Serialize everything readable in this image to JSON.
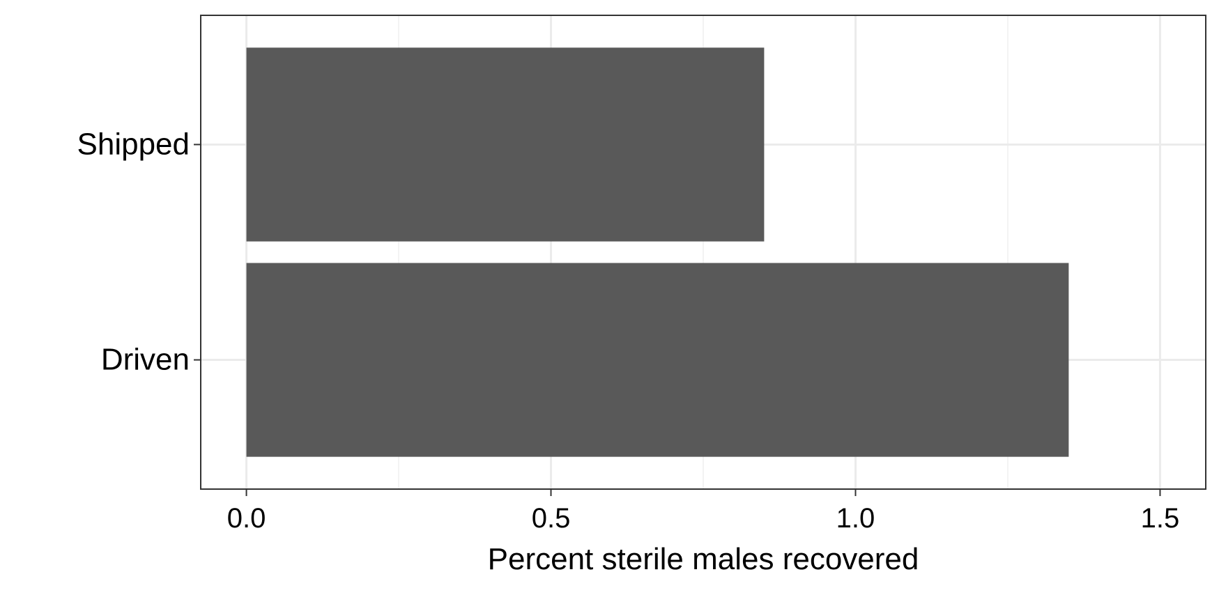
{
  "chart_data": {
    "type": "bar",
    "orientation": "horizontal",
    "title": "",
    "xlabel": "Percent sterile males recovered",
    "ylabel": "",
    "categories": [
      "Driven",
      "Shipped"
    ],
    "values": [
      1.35,
      0.85
    ],
    "xlim": [
      -0.075,
      1.575
    ],
    "xticks": [
      0.0,
      0.5,
      1.0,
      1.5
    ],
    "xtick_labels": [
      "0.0",
      "0.5",
      "1.0",
      "1.5"
    ],
    "x_minor_gridlines": [
      0.25,
      0.75,
      1.25
    ],
    "grid": true,
    "legend": "none",
    "colors": {
      "bar": "#595959",
      "grid_major": "#ebebeb",
      "grid_minor": "#f3f3f3",
      "panel_border": "#333333",
      "tick": "#333333",
      "background": "#ffffff"
    }
  }
}
